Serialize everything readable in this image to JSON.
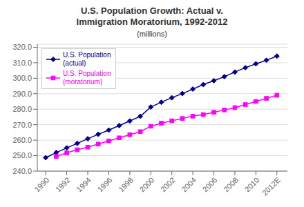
{
  "chart_data": {
    "type": "line",
    "title": "U.S. Population Growth: Actual v.\nImmigration Moratorium, 1992-2012",
    "subtitle": "(millions)",
    "series": [
      {
        "name": "U.S. Population\n(actual)",
        "color": "#00008B",
        "marker": "diamond",
        "x": [
          1990,
          1991,
          1992,
          1993,
          1994,
          1995,
          1996,
          1997,
          1998,
          1999,
          2000,
          2001,
          2002,
          2003,
          2004,
          2005,
          2006,
          2007,
          2008,
          2009,
          2010,
          2011,
          2012
        ],
        "values": [
          248.7,
          252.0,
          255.0,
          257.9,
          260.9,
          263.8,
          266.5,
          269.4,
          272.4,
          275.4,
          281.4,
          284.5,
          287.4,
          290.1,
          293.0,
          295.9,
          298.4,
          301.0,
          304.0,
          306.8,
          309.3,
          311.6,
          314.3
        ]
      },
      {
        "name": "U.S. Population\n(moratorium)",
        "color": "#FF00FF",
        "marker": "square",
        "x": [
          1991,
          1992,
          1993,
          1994,
          1995,
          1996,
          1997,
          1998,
          1999,
          2000,
          2001,
          2002,
          2003,
          2004,
          2005,
          2006,
          2007,
          2008,
          2009,
          2010,
          2011,
          2012
        ],
        "values": [
          249.5,
          251.8,
          253.8,
          255.5,
          257.5,
          259.5,
          261.5,
          263.5,
          265.5,
          269.0,
          271.0,
          272.5,
          274.0,
          275.5,
          276.5,
          278.0,
          279.5,
          281.0,
          283.0,
          285.0,
          287.0,
          289.0
        ]
      }
    ],
    "xlim": [
      1989.2,
      2013.0
    ],
    "xticks": [
      1990,
      1992,
      1994,
      1996,
      1998,
      2000,
      2002,
      2004,
      2006,
      2008,
      2010,
      {
        "value": 2012,
        "label": "2012E"
      }
    ],
    "ylim": [
      240.0,
      322.0
    ],
    "yticks": [
      {
        "value": 240.0,
        "label": "240.0"
      },
      {
        "value": 250.0,
        "label": "250.0"
      },
      {
        "value": 260.0,
        "label": "260.0"
      },
      {
        "value": 270.0,
        "label": "270.0"
      },
      {
        "value": 280.0,
        "label": "280.0"
      },
      {
        "value": 290.0,
        "label": "290.0"
      },
      {
        "value": 300.0,
        "label": "300.0"
      },
      {
        "value": 310.0,
        "label": "310.0"
      },
      {
        "value": 320.0,
        "label": "320.0"
      }
    ],
    "grid": true,
    "legend": "upper left"
  }
}
